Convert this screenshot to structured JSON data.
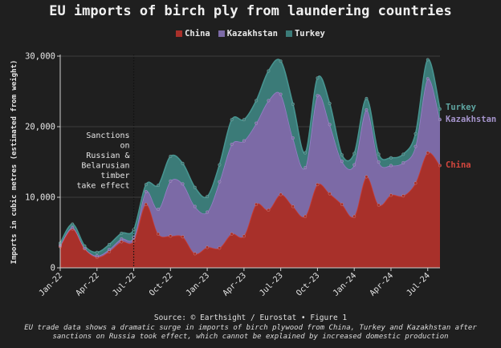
{
  "title": "EU imports of birch ply from laundering countries",
  "legend": [
    {
      "label": "China",
      "color": "#a8302a"
    },
    {
      "label": "Kazakhstan",
      "color": "#7c6aa6"
    },
    {
      "label": "Turkey",
      "color": "#3b7b78"
    }
  ],
  "source": "Source: © Earthsight / Eurostat • Figure 1",
  "caption_line1": "EU trade data shows a dramatic surge in imports of birch plywood from China, Turkey and Kazakhstan after",
  "caption_line2": "sanctions on Russia took effect, which cannot be explained by increased domestic production",
  "chart_data": {
    "type": "area",
    "stacked": true,
    "ylabel": "Imports in cubic metres (estimated from weight)",
    "xlabel": "",
    "ylim": [
      0,
      30000
    ],
    "yticks": [
      0,
      10000,
      20000,
      30000
    ],
    "ytick_labels": [
      "0",
      "10,000",
      "20,000",
      "30,000"
    ],
    "xticks": [
      "Jan-22",
      "Apr-22",
      "Jul-22",
      "Oct-22",
      "Jan-23",
      "Apr-23",
      "Jul-23",
      "Oct-23",
      "Jan-24",
      "Apr-24",
      "Jul-24"
    ],
    "xtick_month_index": [
      0,
      3,
      6,
      9,
      12,
      15,
      18,
      21,
      24,
      27,
      30
    ],
    "months": [
      "Jan-22",
      "Feb-22",
      "Mar-22",
      "Apr-22",
      "May-22",
      "Jun-22",
      "Jul-22",
      "Aug-22",
      "Sep-22",
      "Oct-22",
      "Nov-22",
      "Dec-22",
      "Jan-23",
      "Feb-23",
      "Mar-23",
      "Apr-23",
      "May-23",
      "Jun-23",
      "Jul-23",
      "Aug-23",
      "Sep-23",
      "Oct-23",
      "Nov-23",
      "Dec-23",
      "Jan-24",
      "Feb-24",
      "Mar-24",
      "Apr-24",
      "May-24",
      "Jun-24",
      "Jul-24",
      "Aug-24"
    ],
    "series": [
      {
        "name": "China",
        "color": "#a8302a",
        "values": [
          3000,
          5500,
          2700,
          1500,
          2300,
          3700,
          3800,
          9000,
          4800,
          4500,
          4400,
          2000,
          2900,
          2800,
          4800,
          4500,
          9000,
          8200,
          10400,
          8700,
          7300,
          11800,
          10500,
          9000,
          7300,
          12900,
          8900,
          10300,
          10200,
          12000,
          16300,
          14500
        ]
      },
      {
        "name": "Kazakhstan",
        "color": "#7c6aa6",
        "values": [
          200,
          200,
          100,
          200,
          300,
          400,
          500,
          1800,
          3500,
          7800,
          7500,
          6700,
          5000,
          9400,
          12700,
          13500,
          11500,
          15500,
          14200,
          9700,
          6900,
          12600,
          9800,
          6100,
          7300,
          9500,
          6100,
          4200,
          4700,
          5200,
          10500,
          6500
        ]
      },
      {
        "name": "Turkey",
        "color": "#3b7b78",
        "values": [
          300,
          500,
          300,
          500,
          700,
          800,
          1100,
          1000,
          3400,
          3500,
          2900,
          2700,
          2200,
          2400,
          3500,
          3000,
          3200,
          4200,
          4700,
          4800,
          2100,
          2500,
          3000,
          900,
          1600,
          1600,
          1100,
          1100,
          1200,
          1800,
          2700,
          1500
        ]
      }
    ],
    "annotations": [
      {
        "text_lines": [
          "Sanctions",
          "on",
          "Russian &",
          "Belarusian",
          "timber",
          "take effect"
        ],
        "at_month": "Jul-22",
        "style": "dotted vertical line"
      }
    ],
    "end_labels": [
      "Turkey",
      "Kazakhstan",
      "China"
    ],
    "grid": "horizontal",
    "legend_position": "top-center"
  }
}
